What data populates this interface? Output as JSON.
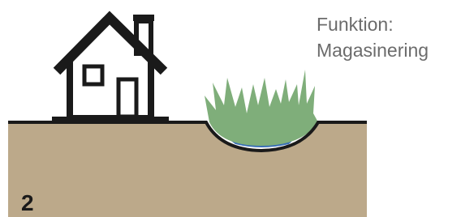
{
  "label": {
    "title": "Funktion:",
    "subtitle": "Magasinering"
  },
  "number": "2"
}
